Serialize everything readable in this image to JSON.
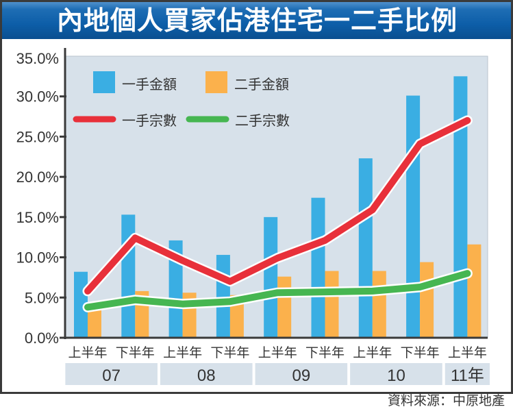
{
  "header": {
    "title": "內地個人買家佔港住宅一二手比例"
  },
  "source": "資料來源：中原地產",
  "colors": {
    "primary_amount": "#3aaee3",
    "secondary_amount": "#fbb14c",
    "primary_count": "#e8303a",
    "secondary_count": "#46b651",
    "plot_bg": "#d7e1ea",
    "title_bg": "#0d5ea8"
  },
  "chart_data": {
    "type": "bar",
    "title": "內地個人買家佔港住宅一二手比例",
    "xlabel": "",
    "ylabel": "",
    "ylim": [
      0,
      35
    ],
    "yticks": [
      0,
      5,
      10,
      15,
      20,
      25,
      30,
      35
    ],
    "ytick_labels": [
      "0.0%",
      "5.0%",
      "10.0%",
      "15.0%",
      "20.0%",
      "25.0%",
      "30.0%",
      "35.0%"
    ],
    "grid": false,
    "categories": [
      "上半年",
      "下半年",
      "上半年",
      "下半年",
      "上半年",
      "下半年",
      "上半年",
      "下半年",
      "上半年"
    ],
    "year_groups": [
      {
        "label": "07",
        "span": 2
      },
      {
        "label": "08",
        "span": 2
      },
      {
        "label": "09",
        "span": 2
      },
      {
        "label": "10",
        "span": 2
      },
      {
        "label": "11年",
        "span": 1
      }
    ],
    "legend_position": "top-left",
    "series": [
      {
        "name": "一手金額",
        "kind": "bar",
        "values": [
          8.2,
          15.3,
          12.1,
          10.3,
          15.0,
          17.4,
          22.3,
          30.1,
          32.5
        ]
      },
      {
        "name": "二手金額",
        "kind": "bar",
        "values": [
          3.5,
          5.8,
          5.6,
          5.3,
          7.6,
          8.3,
          8.3,
          9.4,
          11.6
        ]
      },
      {
        "name": "一手宗數",
        "kind": "line",
        "values": [
          5.8,
          12.4,
          9.6,
          7.0,
          9.9,
          12.1,
          15.9,
          24.1,
          27.0
        ]
      },
      {
        "name": "二手宗數",
        "kind": "line",
        "values": [
          3.8,
          4.7,
          4.2,
          4.5,
          5.6,
          5.7,
          5.8,
          6.3,
          8.0
        ]
      }
    ]
  }
}
